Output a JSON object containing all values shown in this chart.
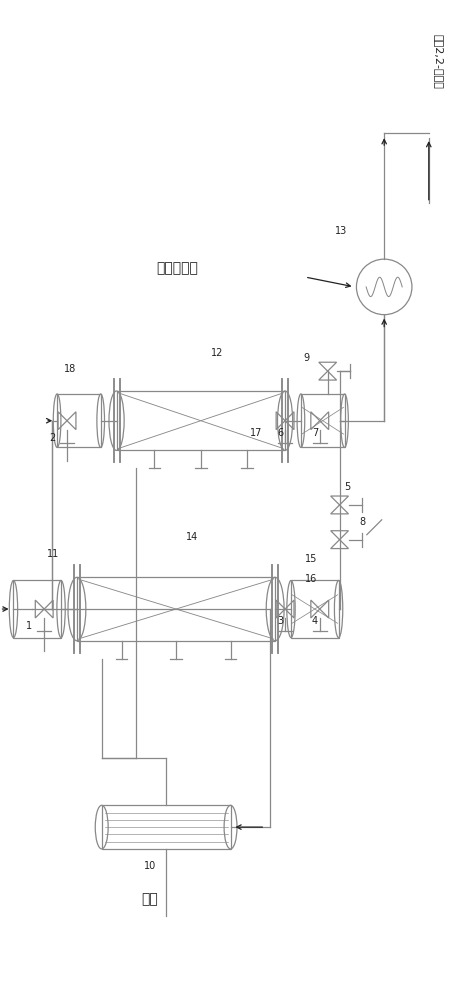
{
  "bg_color": "#ffffff",
  "line_color": "#888888",
  "dark_color": "#222222",
  "fig_width": 4.5,
  "fig_height": 10.0,
  "label_bottom": "吡啶",
  "label_product": "产品2,2-联吡啶",
  "label_extract": "出萃余液相",
  "lw": 0.9
}
